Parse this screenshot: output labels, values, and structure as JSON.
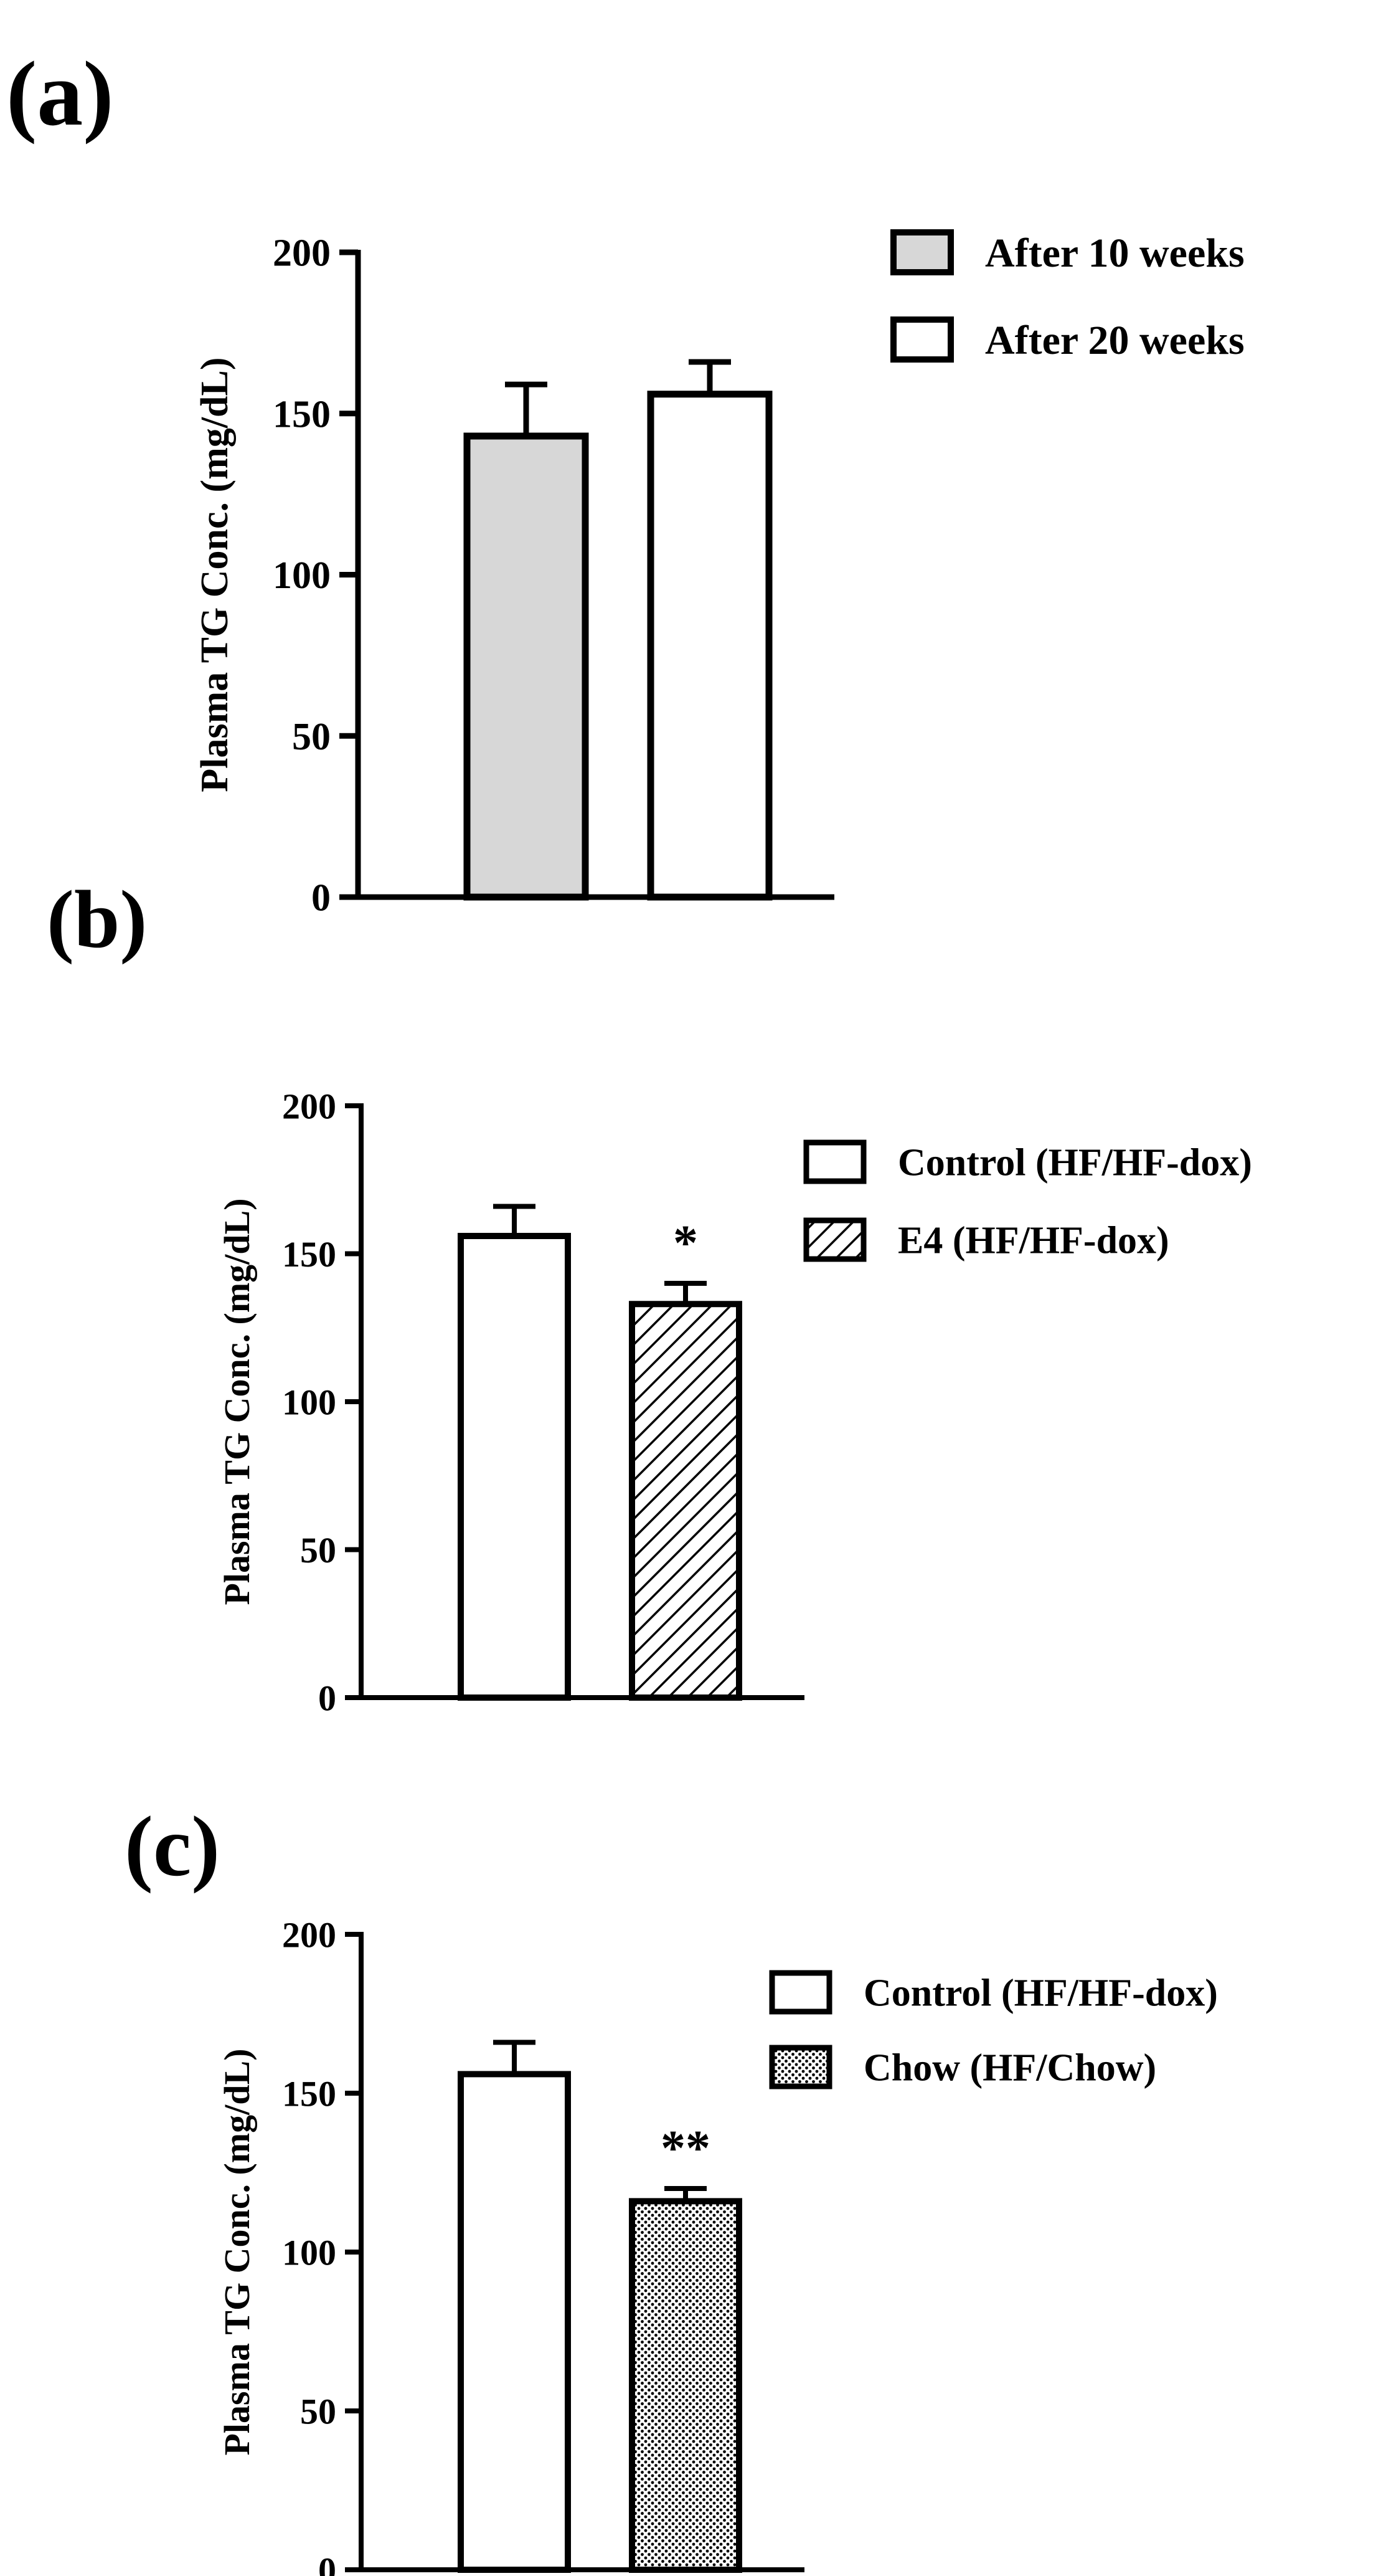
{
  "chart_data": [
    {
      "panel_label": "(a)",
      "type": "bar",
      "ylabel": "Plasma TG Conc. (mg/dL)",
      "ylim": [
        0,
        200
      ],
      "yticks": [
        "0",
        "50",
        "100",
        "150",
        "200"
      ],
      "legend_position": "top-right",
      "series": [
        {
          "name": "After 10 weeks",
          "value": 143,
          "error": 16,
          "fill": "solid-gray",
          "color": "#d7d7d7",
          "annotation": ""
        },
        {
          "name": "After 20 weeks",
          "value": 156,
          "error": 10,
          "fill": "white",
          "color": "#ffffff",
          "annotation": ""
        }
      ]
    },
    {
      "panel_label": "(b)",
      "type": "bar",
      "ylabel": "Plasma TG Conc. (mg/dL)",
      "ylim": [
        0,
        200
      ],
      "yticks": [
        "0",
        "50",
        "100",
        "150",
        "200"
      ],
      "legend_position": "top-right",
      "series": [
        {
          "name": "Control (HF/HF-dox)",
          "value": 156,
          "error": 10,
          "fill": "white",
          "color": "#ffffff",
          "annotation": ""
        },
        {
          "name": "E4 (HF/HF-dox)",
          "value": 133,
          "error": 7,
          "fill": "diagonal-hatch",
          "color": "#000000",
          "annotation": "*"
        }
      ]
    },
    {
      "panel_label": "(c)",
      "type": "bar",
      "ylabel": "Plasma TG Conc. (mg/dL)",
      "ylim": [
        0,
        200
      ],
      "yticks": [
        "0",
        "50",
        "100",
        "150",
        "200"
      ],
      "legend_position": "top-right",
      "series": [
        {
          "name": "Control (HF/HF-dox)",
          "value": 156,
          "error": 10,
          "fill": "white",
          "color": "#ffffff",
          "annotation": ""
        },
        {
          "name": "Chow (HF/Chow)",
          "value": 116,
          "error": 4,
          "fill": "dotted",
          "color": "#000000",
          "annotation": "**"
        }
      ]
    }
  ]
}
